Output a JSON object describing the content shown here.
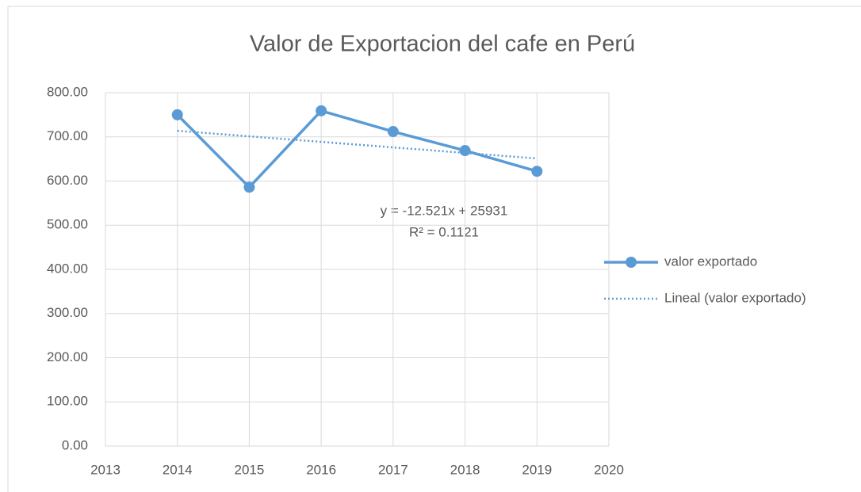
{
  "chart_data": {
    "type": "scatter-line",
    "title": "Valor de Exportacion del cafe en Perú",
    "annotations": [
      "y = -12.521x + 25931",
      "R² = 0.1121"
    ],
    "series": [
      {
        "name": "valor exportado",
        "color": "#5b9bd5",
        "style": "solid-markers",
        "x": [
          2014,
          2015,
          2016,
          2017,
          2018,
          2019
        ],
        "values": [
          750,
          586,
          759,
          712,
          669,
          622
        ]
      },
      {
        "name": "Lineal (valor exportado)",
        "color": "#5b9bd5",
        "style": "dotted",
        "x": [
          2014,
          2019
        ],
        "values": [
          713.7,
          651.1
        ]
      }
    ],
    "xlim": [
      2013,
      2020
    ],
    "xticks": [
      2013,
      2014,
      2015,
      2016,
      2017,
      2018,
      2019,
      2020
    ],
    "ylim": [
      0,
      800
    ],
    "yticks": [
      {
        "value": 0,
        "label": "0.00"
      },
      {
        "value": 100,
        "label": "100.00"
      },
      {
        "value": 200,
        "label": "200.00"
      },
      {
        "value": 300,
        "label": "300.00"
      },
      {
        "value": 400,
        "label": "400.00"
      },
      {
        "value": 500,
        "label": "500.00"
      },
      {
        "value": 600,
        "label": "600.00"
      },
      {
        "value": 700,
        "label": "700.00"
      },
      {
        "value": 800,
        "label": "800.00"
      }
    ],
    "grid": true,
    "legend": "right"
  }
}
